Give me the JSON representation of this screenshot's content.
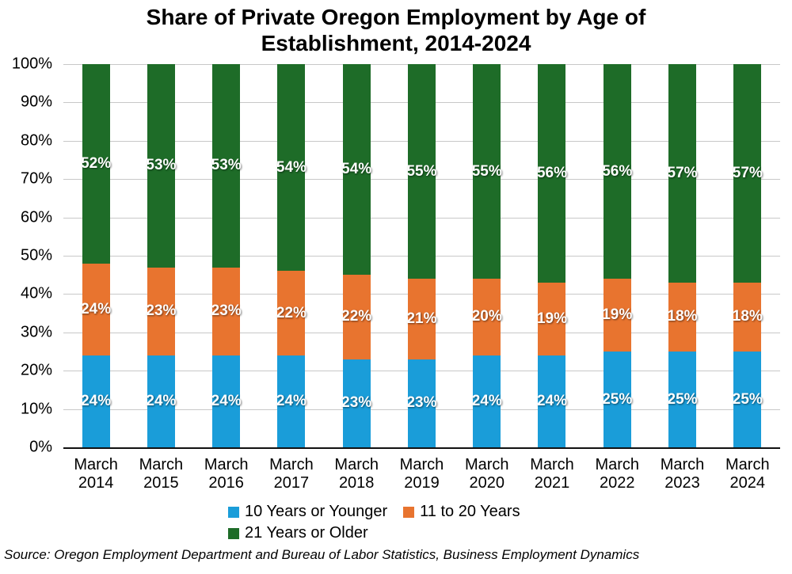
{
  "title": {
    "line1": "Share of Private Oregon Employment by Age of",
    "line2": "Establishment, 2014-2024"
  },
  "source_note": "Source: Oregon Employment Department and Bureau of Labor Statistics, Business Employment Dynamics",
  "colors": {
    "grid": "#c8c8c8",
    "axis": "#111111",
    "data_label_text": "#ffffff"
  },
  "chart_data": {
    "type": "bar",
    "stacked": true,
    "percent_stacked": true,
    "title": "Share of Private Oregon Employment by Age of Establishment, 2014-2024",
    "xlabel": "",
    "ylabel": "",
    "ylim": [
      0,
      100
    ],
    "grid": true,
    "legend_position": "bottom",
    "yticks": [
      "100%",
      "90%",
      "80%",
      "70%",
      "60%",
      "50%",
      "40%",
      "30%",
      "20%",
      "10%",
      "0%"
    ],
    "categories": [
      "March 2014",
      "March 2015",
      "March 2016",
      "March 2017",
      "March 2018",
      "March 2019",
      "March 2020",
      "March 2021",
      "March 2022",
      "March 2023",
      "March 2024"
    ],
    "series": [
      {
        "name": "10 Years or Younger",
        "color": "#1A9DD9",
        "values": [
          24,
          24,
          24,
          24,
          23,
          23,
          24,
          24,
          25,
          25,
          25
        ],
        "labels": [
          "24%",
          "24%",
          "24%",
          "24%",
          "23%",
          "23%",
          "24%",
          "24%",
          "25%",
          "25%",
          "25%"
        ]
      },
      {
        "name": "11 to 20 Years",
        "color": "#E8742F",
        "values": [
          24,
          23,
          23,
          22,
          22,
          21,
          20,
          19,
          19,
          18,
          18
        ],
        "labels": [
          "24%",
          "23%",
          "23%",
          "22%",
          "22%",
          "21%",
          "20%",
          "19%",
          "19%",
          "18%",
          "18%"
        ]
      },
      {
        "name": "21 Years or Older",
        "color": "#1E6C28",
        "values": [
          52,
          53,
          53,
          54,
          54,
          55,
          55,
          56,
          56,
          57,
          57
        ],
        "labels": [
          "52%",
          "53%",
          "53%",
          "54%",
          "54%",
          "55%",
          "55%",
          "56%",
          "56%",
          "57%",
          "57%"
        ]
      }
    ],
    "legend_rows": [
      [
        0,
        1
      ],
      [
        2
      ]
    ]
  }
}
